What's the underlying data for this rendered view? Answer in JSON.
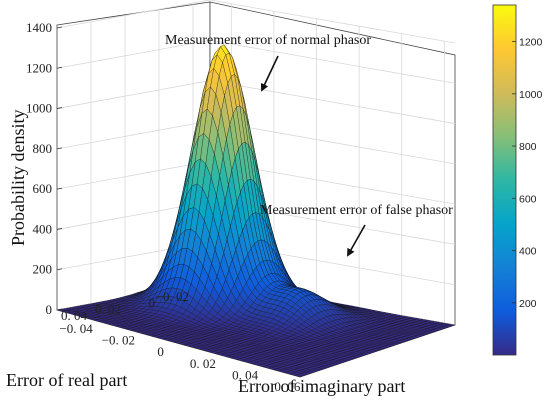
{
  "chart_data": {
    "type": "surface3d",
    "title": "",
    "zlabel": "Probability density",
    "xlabel": "Error of real part",
    "ylabel": "Error of imaginary part",
    "zlim": [
      0,
      1400
    ],
    "zticks": [
      "0",
      "200",
      "400",
      "600",
      "800",
      "1000",
      "1200",
      "1400"
    ],
    "xticks": [
      "−0. 02",
      "0",
      "0. 02",
      "0. 04"
    ],
    "yticks": [
      "−0. 04",
      "−0. 02",
      "0",
      "0. 02",
      "0. 04",
      "0. 06"
    ],
    "colorbar": {
      "range": [
        0,
        1340
      ],
      "ticks": [
        "200",
        "400",
        "600",
        "800",
        "1000",
        "1200"
      ],
      "colormap": "parula",
      "colors": [
        "#352a87",
        "#0f5cdd",
        "#1481d6",
        "#06a4ca",
        "#2eb7a4",
        "#87bf77",
        "#d1bb59",
        "#fec832",
        "#f9fb0e"
      ]
    },
    "peaks": [
      {
        "name": "normal phasor",
        "peak_density": 1290,
        "x": 0.0,
        "y": -0.02
      },
      {
        "name": "false phasor",
        "peak_density": 150,
        "x": 0.0,
        "y": 0.015
      }
    ],
    "annotations": [
      {
        "text": "Measurement error of normal phasor"
      },
      {
        "text": "Measurement error of false phasor"
      }
    ]
  }
}
